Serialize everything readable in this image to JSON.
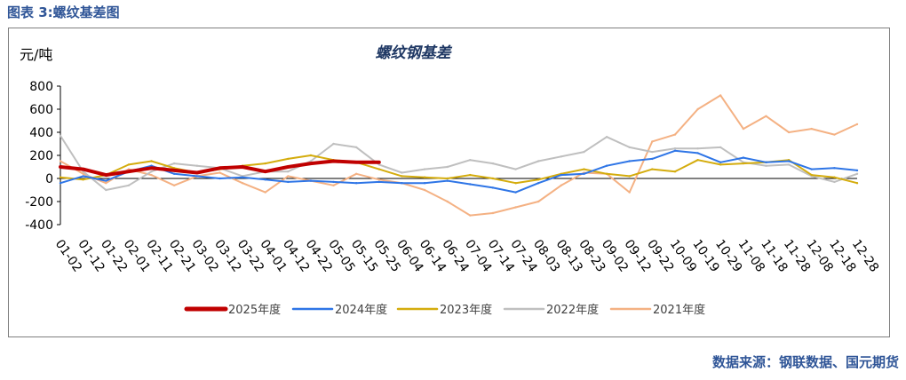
{
  "figure_title": "图表 3:螺纹基差图",
  "source_note": "数据来源：钢联数据、国元期货",
  "colors": {
    "title": "#2F5597",
    "chart_title": "#1F3864",
    "y2025": "#C00000",
    "y2024": "#2E75E6",
    "y2023": "#D4AC0D",
    "y2022": "#BFBFBF",
    "y2021": "#F4B183"
  },
  "chart_data": {
    "type": "line",
    "title": "螺纹钢基差",
    "ylabel": "元/吨",
    "xlabel": "",
    "ylim": [
      -400,
      800
    ],
    "yticks": [
      800,
      600,
      400,
      200,
      0,
      -200,
      -400
    ],
    "grid": false,
    "legend_position": "bottom",
    "x": [
      "01-02",
      "01-12",
      "01-22",
      "02-01",
      "02-11",
      "02-21",
      "03-02",
      "03-12",
      "03-22",
      "04-01",
      "04-12",
      "04-22",
      "05-05",
      "05-15",
      "05-25",
      "06-04",
      "06-14",
      "06-24",
      "07-04",
      "07-14",
      "07-24",
      "08-03",
      "08-13",
      "08-23",
      "09-02",
      "09-12",
      "09-22",
      "10-09",
      "10-19",
      "10-29",
      "11-08",
      "11-18",
      "11-28",
      "12-08",
      "12-18",
      "12-28"
    ],
    "series": [
      {
        "name": "2025年度",
        "color": "#C00000",
        "width": 4,
        "values": [
          100,
          80,
          30,
          60,
          90,
          70,
          50,
          90,
          100,
          60,
          100,
          130,
          150,
          140,
          140,
          null,
          null,
          null,
          null,
          null,
          null,
          null,
          null,
          null,
          null,
          null,
          null,
          null,
          null,
          null,
          null,
          null,
          null,
          null,
          null,
          null
        ]
      },
      {
        "name": "2024年度",
        "color": "#2E75E6",
        "width": 2,
        "values": [
          -40,
          20,
          -20,
          60,
          110,
          40,
          20,
          0,
          10,
          -10,
          -30,
          -20,
          -30,
          -40,
          -30,
          -40,
          -40,
          -20,
          -50,
          -80,
          -120,
          -40,
          30,
          40,
          110,
          150,
          170,
          240,
          220,
          140,
          180,
          140,
          150,
          80,
          90,
          70
        ]
      },
      {
        "name": "2023年度",
        "color": "#D4AC0D",
        "width": 2,
        "values": [
          10,
          -10,
          30,
          120,
          150,
          90,
          50,
          80,
          110,
          130,
          170,
          200,
          160,
          140,
          80,
          20,
          10,
          0,
          30,
          0,
          -40,
          -10,
          40,
          80,
          40,
          20,
          80,
          60,
          160,
          120,
          130,
          140,
          160,
          30,
          10,
          -40
        ]
      },
      {
        "name": "2022年度",
        "color": "#BFBFBF",
        "width": 2,
        "values": [
          370,
          60,
          -100,
          -60,
          60,
          130,
          110,
          90,
          20,
          60,
          60,
          150,
          300,
          270,
          120,
          50,
          80,
          100,
          160,
          130,
          80,
          150,
          190,
          230,
          360,
          270,
          230,
          260,
          260,
          270,
          140,
          110,
          120,
          20,
          -30,
          40
        ]
      },
      {
        "name": "2021年度",
        "color": "#F4B183",
        "width": 2,
        "values": [
          150,
          40,
          -40,
          80,
          30,
          -60,
          20,
          50,
          -40,
          -120,
          20,
          -20,
          -60,
          40,
          -10,
          -40,
          -100,
          -200,
          -320,
          -300,
          -250,
          -200,
          -60,
          50,
          40,
          -120,
          320,
          380,
          600,
          720,
          430,
          540,
          400,
          430,
          380,
          470
        ]
      }
    ]
  }
}
